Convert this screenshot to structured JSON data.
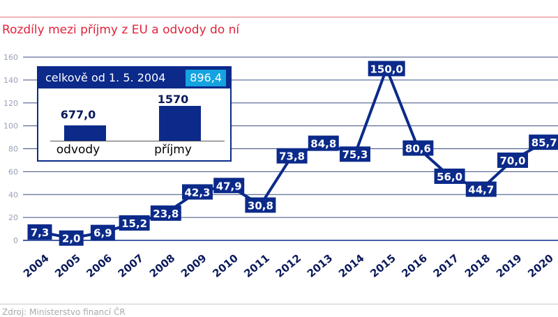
{
  "title": "Rozdíly mezi příjmy z EU a odvody do ní",
  "source": "Zdroj: Ministerstvo financí ČR",
  "colors": {
    "title": "#e0233a",
    "series": "#0b2a8a",
    "highlight": "#14a3e0",
    "grid": "#1a2a6a"
  },
  "inset": {
    "header": "celkově od 1. 5. 2004",
    "total": "896,4",
    "bars": [
      {
        "label": "odvody",
        "value": 677.0,
        "display": "677,0"
      },
      {
        "label": "příjmy",
        "value": 1570,
        "display": "1570"
      }
    ]
  },
  "chart_data": {
    "type": "line",
    "title": "Rozdíly mezi příjmy z EU a odvody do ní",
    "x": [
      "2004",
      "2005",
      "2006",
      "2007",
      "2008",
      "2009",
      "2010",
      "2011",
      "2012",
      "2013",
      "2014",
      "2015",
      "2016",
      "2017",
      "2018",
      "2019",
      "2020"
    ],
    "values": [
      7.3,
      2.0,
      6.9,
      15.2,
      23.8,
      42.3,
      47.9,
      30.8,
      73.8,
      84.8,
      75.3,
      150.0,
      80.6,
      56.0,
      44.7,
      70.0,
      85.7
    ],
    "labels": [
      "7,3",
      "2,0",
      "6,9",
      "15,2",
      "23,8",
      "42,3",
      "47,9",
      "30,8",
      "73,8",
      "84,8",
      "75,3",
      "150,0",
      "80,6",
      "56,0",
      "44,7",
      "70,0",
      "85,7"
    ],
    "ylim": [
      0,
      160
    ],
    "yticks": [
      "0",
      "20",
      "40",
      "60",
      "80",
      "100",
      "120",
      "140",
      "160"
    ],
    "grid": true
  }
}
